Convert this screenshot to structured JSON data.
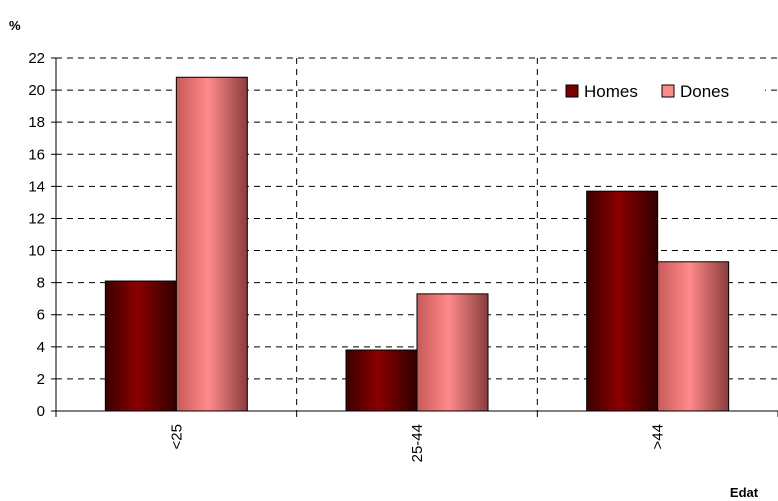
{
  "chart_data": {
    "type": "bar",
    "categories": [
      "<25",
      "25-44",
      ">44"
    ],
    "series": [
      {
        "name": "Homes",
        "values": [
          8.1,
          3.8,
          13.7
        ],
        "color": "#7a0000"
      },
      {
        "name": "Dones",
        "values": [
          20.8,
          7.3,
          9.3
        ],
        "color": "#ff8a8a"
      }
    ],
    "xlabel": "Edat",
    "ylabel": "%",
    "ylim": [
      0,
      22
    ],
    "ytick_step": 2,
    "grid": true,
    "legend": "top-right"
  }
}
